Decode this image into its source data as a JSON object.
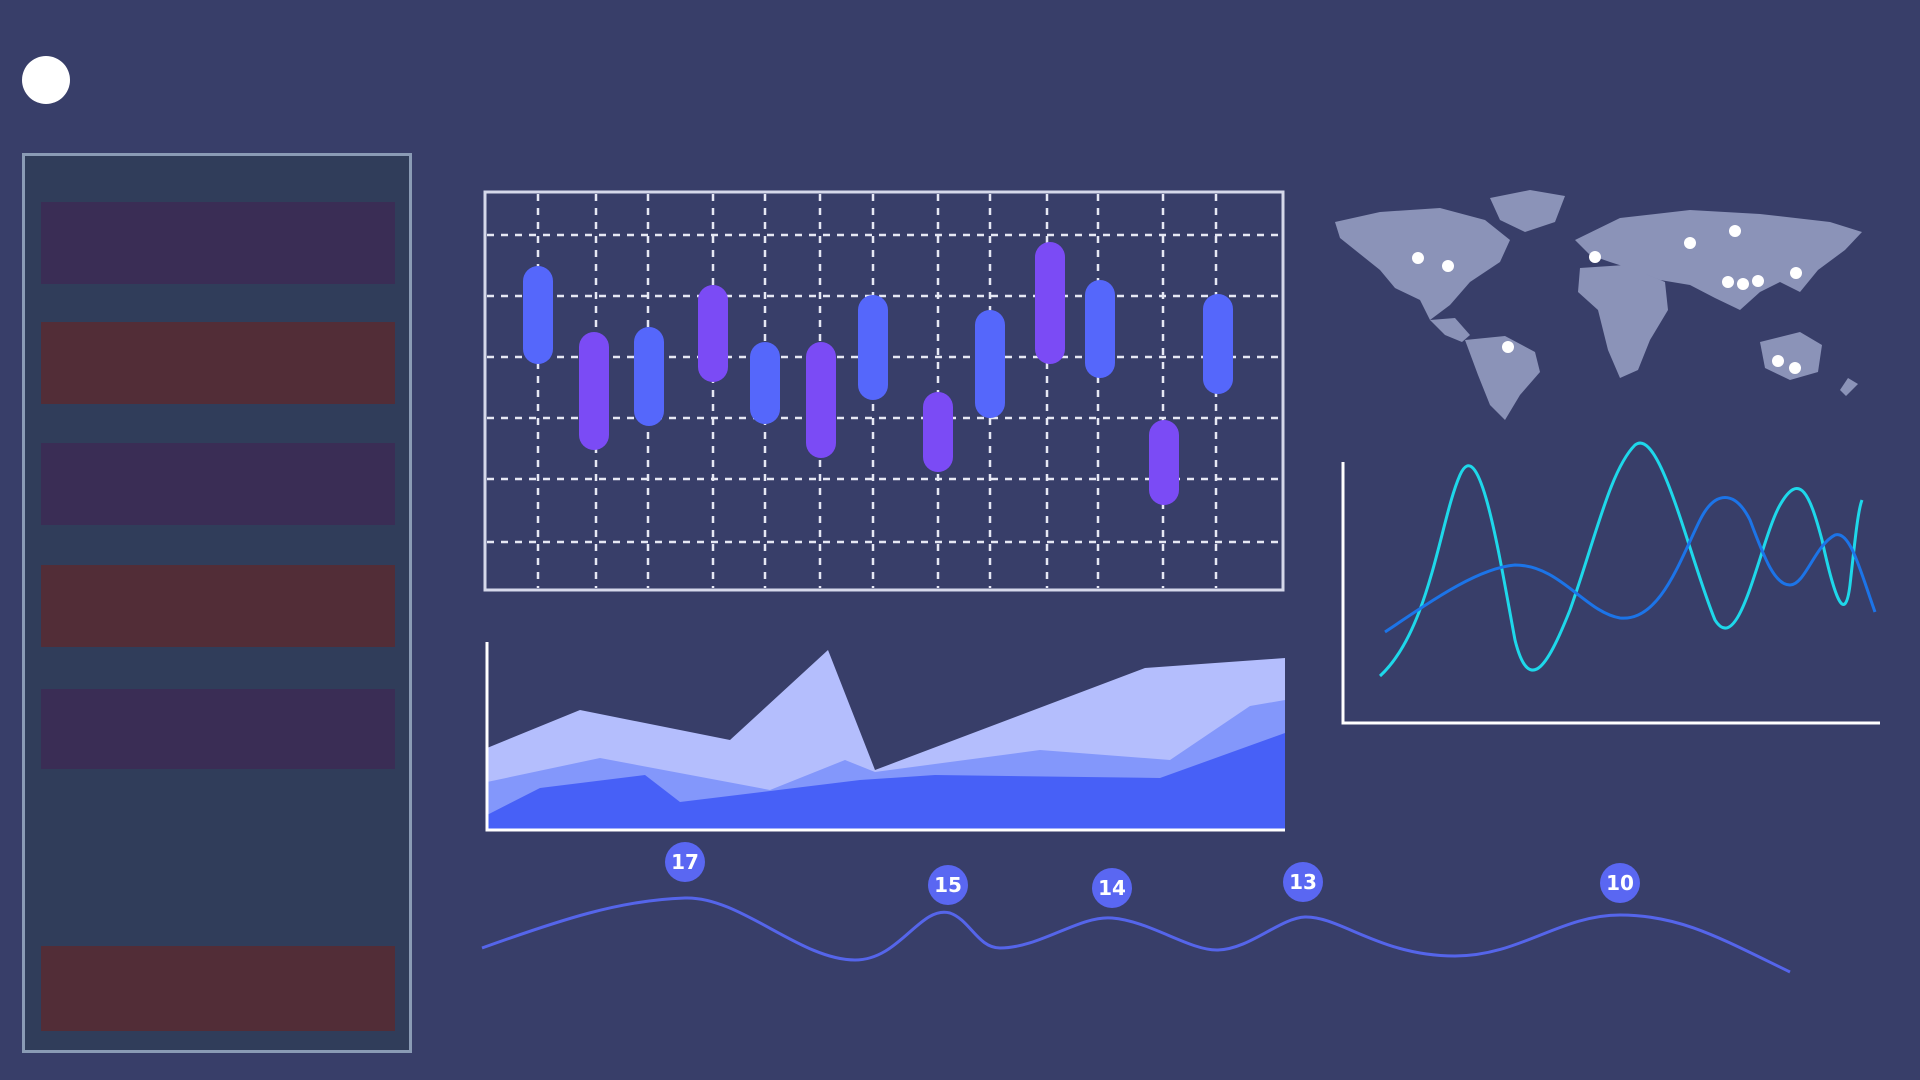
{
  "colors": {
    "background": "#383e69",
    "panel": "#303d5a",
    "panel_border": "#8a9bb5",
    "bar_purple": "#3a2d55",
    "bar_red": "#522d37",
    "candle_blue": "#5567fb",
    "candle_purple": "#7b4bf5",
    "area_light": "#b4befd",
    "area_mid": "#8397fb",
    "area_dark": "#4760f7",
    "map": "#8b93b8",
    "wave_cyan": "#1ed8ea",
    "wave_blue": "#1c74e8",
    "bubble": "#5a67f2"
  },
  "sidebar": {
    "bars": [
      {
        "color": "purple"
      },
      {
        "color": "red"
      },
      {
        "color": "purple"
      },
      {
        "color": "red"
      },
      {
        "color": "purple"
      },
      {
        "color": "red"
      }
    ]
  },
  "bubble_line": {
    "labels": [
      "17",
      "15",
      "14",
      "13",
      "10"
    ]
  },
  "chart_data": [
    {
      "type": "candlestick",
      "title": "",
      "grid": true,
      "candles": [
        {
          "color": "blue"
        },
        {
          "color": "purple"
        },
        {
          "color": "blue"
        },
        {
          "color": "purple"
        },
        {
          "color": "blue"
        },
        {
          "color": "purple"
        },
        {
          "color": "blue"
        },
        {
          "color": "purple"
        },
        {
          "color": "blue"
        },
        {
          "color": "purple"
        },
        {
          "color": "blue"
        },
        {
          "color": "purple"
        },
        {
          "color": "blue"
        }
      ]
    },
    {
      "type": "area",
      "title": "",
      "stacked": true
    },
    {
      "type": "line",
      "title": "",
      "series": [
        {
          "color": "cyan"
        },
        {
          "color": "blue"
        }
      ]
    },
    {
      "type": "line",
      "title": "",
      "data_labels": [
        "17",
        "15",
        "14",
        "13",
        "10"
      ]
    }
  ]
}
